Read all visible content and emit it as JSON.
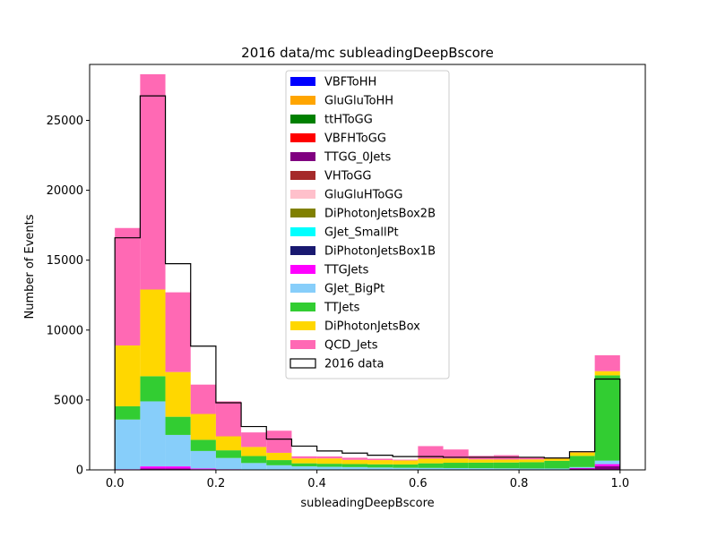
{
  "chart_data": {
    "type": "bar",
    "stacked": true,
    "title": "2016 data/mc subleadingDeepBscore",
    "xlabel": "subleadingDeepBscore",
    "ylabel": "Number of Events",
    "xlim": [
      -0.05,
      1.05
    ],
    "ylim": [
      0,
      29000
    ],
    "xticks": [
      0.0,
      0.2,
      0.4,
      0.6,
      0.8,
      1.0
    ],
    "xtick_labels": [
      "0.0",
      "0.2",
      "0.4",
      "0.6",
      "0.8",
      "1.0"
    ],
    "yticks": [
      0,
      5000,
      10000,
      15000,
      20000,
      25000
    ],
    "ytick_labels": [
      "0",
      "5000",
      "10000",
      "15000",
      "20000",
      "25000"
    ],
    "bin_edges": [
      0.0,
      0.05,
      0.1,
      0.15,
      0.2,
      0.25,
      0.3,
      0.35,
      0.4,
      0.45,
      0.5,
      0.55,
      0.6,
      0.65,
      0.7,
      0.75,
      0.8,
      0.85,
      0.9,
      0.95,
      1.0
    ],
    "grid": false,
    "legend_position": "top-center",
    "series": [
      {
        "name": "VBFToHH",
        "color": "#0000ff",
        "values": [
          0,
          0,
          0,
          0,
          0,
          0,
          0,
          0,
          0,
          0,
          0,
          0,
          0,
          0,
          0,
          0,
          0,
          0,
          0,
          0
        ]
      },
      {
        "name": "GluGluToHH",
        "color": "#ffa500",
        "values": [
          0,
          0,
          0,
          0,
          0,
          0,
          0,
          0,
          0,
          0,
          0,
          0,
          0,
          0,
          0,
          0,
          0,
          0,
          0,
          0
        ]
      },
      {
        "name": "ttHToGG",
        "color": "#008000",
        "values": [
          0,
          0,
          0,
          0,
          0,
          0,
          0,
          0,
          0,
          0,
          0,
          0,
          0,
          0,
          0,
          0,
          0,
          0,
          0,
          10
        ]
      },
      {
        "name": "VBFHToGG",
        "color": "#ff0000",
        "values": [
          0,
          0,
          0,
          0,
          0,
          0,
          0,
          0,
          0,
          0,
          0,
          0,
          0,
          0,
          0,
          0,
          0,
          0,
          0,
          0
        ]
      },
      {
        "name": "TTGG_0Jets",
        "color": "#800080",
        "values": [
          0,
          100,
          100,
          50,
          20,
          10,
          10,
          10,
          10,
          10,
          10,
          10,
          10,
          10,
          10,
          10,
          10,
          10,
          100,
          260
        ]
      },
      {
        "name": "VHToGG",
        "color": "#a52a2a",
        "values": [
          0,
          0,
          0,
          0,
          0,
          0,
          0,
          0,
          0,
          0,
          0,
          0,
          0,
          0,
          0,
          0,
          0,
          0,
          0,
          0
        ]
      },
      {
        "name": "GluGluHToGG",
        "color": "#ffc0cb",
        "values": [
          0,
          0,
          0,
          0,
          0,
          0,
          0,
          0,
          0,
          0,
          0,
          0,
          0,
          0,
          0,
          0,
          0,
          0,
          0,
          0
        ]
      },
      {
        "name": "DiPhotonJetsBox2B",
        "color": "#808000",
        "values": [
          0,
          0,
          0,
          0,
          0,
          0,
          0,
          0,
          0,
          0,
          0,
          0,
          0,
          0,
          0,
          0,
          0,
          0,
          0,
          0
        ]
      },
      {
        "name": "GJet_SmallPt",
        "color": "#00ffff",
        "values": [
          0,
          0,
          0,
          0,
          0,
          0,
          0,
          0,
          0,
          0,
          0,
          0,
          0,
          0,
          0,
          0,
          0,
          0,
          0,
          0
        ]
      },
      {
        "name": "DiPhotonJetsBox1B",
        "color": "#191970",
        "values": [
          0,
          0,
          0,
          0,
          0,
          0,
          0,
          0,
          0,
          0,
          0,
          0,
          0,
          0,
          0,
          0,
          0,
          0,
          0,
          0
        ]
      },
      {
        "name": "TTGJets",
        "color": "#ff00ff",
        "values": [
          50,
          150,
          150,
          50,
          30,
          20,
          10,
          10,
          10,
          10,
          10,
          10,
          10,
          10,
          10,
          10,
          10,
          10,
          30,
          140
        ]
      },
      {
        "name": "GJet_BigPt",
        "color": "#87cefa",
        "values": [
          3550,
          4650,
          2250,
          1250,
          800,
          460,
          310,
          230,
          200,
          180,
          150,
          130,
          120,
          110,
          100,
          90,
          80,
          80,
          70,
          250
        ]
      },
      {
        "name": "TTJets",
        "color": "#32cd32",
        "values": [
          950,
          1800,
          1300,
          800,
          550,
          500,
          370,
          220,
          220,
          220,
          230,
          240,
          330,
          380,
          400,
          420,
          450,
          550,
          800,
          6100
        ]
      },
      {
        "name": "DiPhotonJetsBox",
        "color": "#ffd700",
        "values": [
          4350,
          6200,
          3200,
          1850,
          1000,
          650,
          520,
          350,
          380,
          300,
          300,
          290,
          330,
          300,
          230,
          210,
          200,
          150,
          250,
          300
        ]
      },
      {
        "name": "QCD_Jets",
        "color": "#ff69b4",
        "values": [
          8400,
          15400,
          5700,
          2100,
          2500,
          1040,
          1580,
          150,
          140,
          150,
          100,
          50,
          900,
          650,
          250,
          310,
          150,
          50,
          30,
          1140
        ]
      }
    ],
    "data": {
      "name": "2016 data",
      "color": "#000000",
      "values": [
        16600,
        26750,
        14750,
        8850,
        4800,
        3100,
        2200,
        1700,
        1350,
        1200,
        1050,
        950,
        950,
        900,
        900,
        900,
        900,
        850,
        1300,
        6500
      ]
    }
  }
}
